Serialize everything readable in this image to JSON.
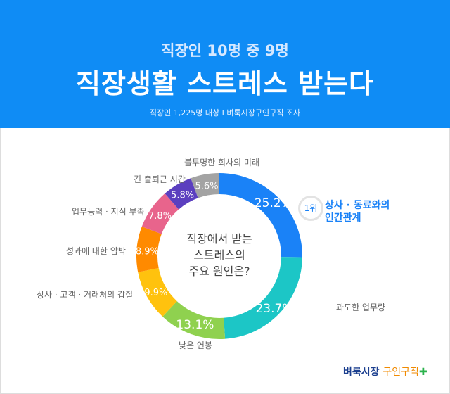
{
  "header": {
    "subtitle": "직장인 10명 중 9명",
    "title": "직장생활 스트레스 받는다",
    "source": "직장인 1,225명 대상  I  벼룩시장구인구직 조사"
  },
  "chart_data": {
    "type": "pie",
    "donut": true,
    "center_label": [
      "직장에서 받는",
      "스트레스의",
      "주요 원인은?"
    ],
    "unit": "%",
    "categories": [
      "상사 · 동료와의 인간관계",
      "과도한 업무량",
      "낮은 연봉",
      "상사 · 고객 · 거래처의 갑질",
      "성과에 대한 압박",
      "업무능력 · 지식 부족",
      "긴 출퇴근 시간",
      "불투명한 회사의 미래"
    ],
    "values": [
      25.2,
      23.7,
      13.1,
      9.9,
      8.9,
      7.8,
      5.8,
      5.6
    ],
    "colors": [
      "#1a82f7",
      "#1cc6c6",
      "#8fd14f",
      "#ffc20e",
      "#ff8a00",
      "#e8648c",
      "#5b3fbf",
      "#a3a3a3"
    ],
    "top_rank": {
      "badge": "1위",
      "label_line1": "상사 · 동료와의",
      "label_line2": "인간관계"
    }
  },
  "logo": {
    "part1": "벼룩시장",
    "part2": "구인구직"
  }
}
